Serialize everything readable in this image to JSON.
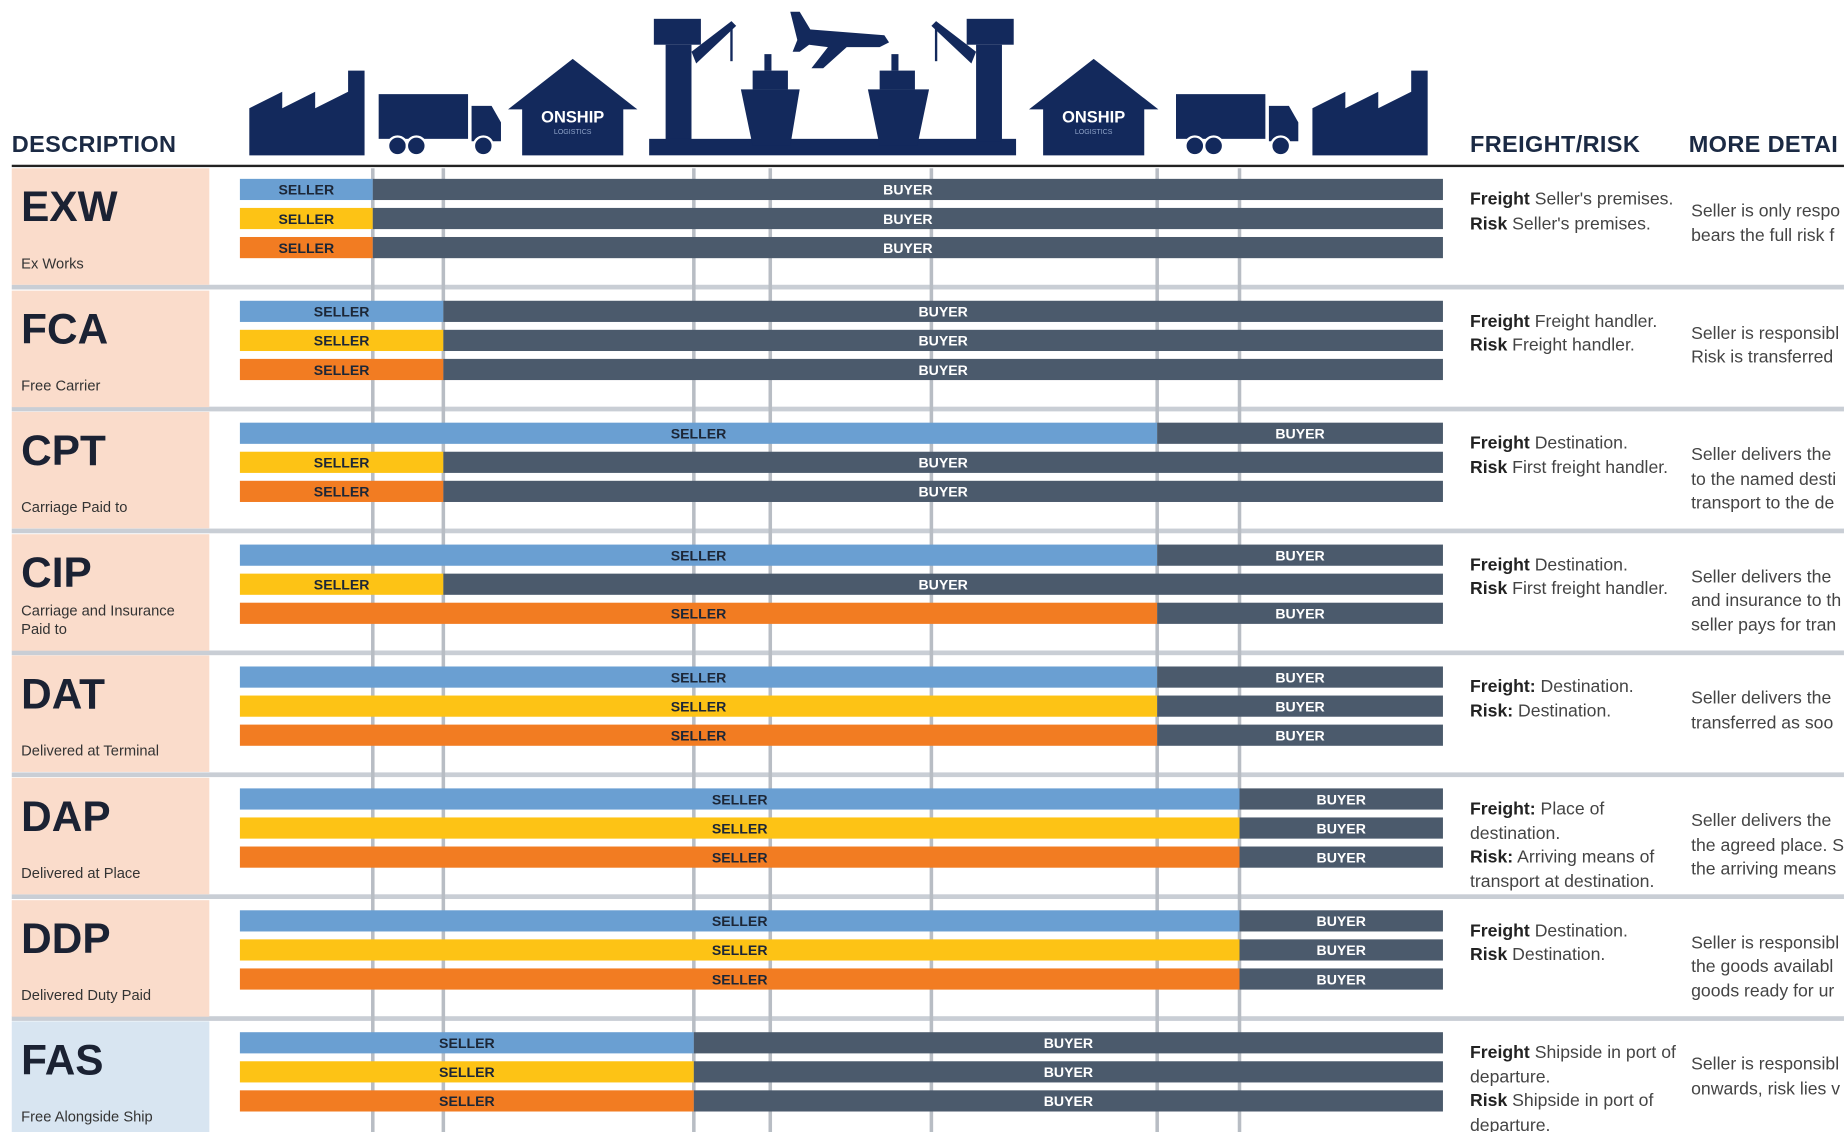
{
  "header": {
    "description": "DESCRIPTION",
    "freight_risk": "FREIGHT/RISK",
    "more_details": "MORE DETAI",
    "logo": "ONSHIP",
    "logo_sub": "LOGISTICS"
  },
  "rows": [
    {
      "code": "EXW",
      "name": "Ex Works",
      "bars": [
        [
          "SELLER",
          "BUYER"
        ],
        [
          "SELLER",
          "BUYER"
        ],
        [
          "SELLER",
          "BUYER"
        ]
      ],
      "freight_label": "Freight",
      "freight": "Seller's premises.",
      "risk_label": "Risk",
      "risk": "Seller's premises.",
      "details": [
        "Seller is only respo",
        "bears the full risk f"
      ]
    },
    {
      "code": "FCA",
      "name": "Free Carrier",
      "bars": [
        [
          "SELLER",
          "BUYER"
        ],
        [
          "SELLER",
          "BUYER"
        ],
        [
          "SELLER",
          "BUYER"
        ]
      ],
      "freight_label": "Freight",
      "freight": "Freight handler.",
      "risk_label": "Risk",
      "risk": "Freight handler.",
      "details": [
        "Seller is responsibl",
        "Risk is transferred"
      ]
    },
    {
      "code": "CPT",
      "name": "Carriage Paid to",
      "bars": [
        [
          "SELLER",
          "BUYER"
        ],
        [
          "SELLER",
          "BUYER"
        ],
        [
          "SELLER",
          "BUYER"
        ]
      ],
      "freight_label": "Freight",
      "freight": "Destination.",
      "risk_label": "Risk",
      "risk": "First freight handler.",
      "details": [
        "Seller delivers the",
        "to the named desti",
        "transport to the de"
      ]
    },
    {
      "code": "CIP",
      "name": "Carriage and Insurance Paid to",
      "bars": [
        [
          "SELLER",
          "BUYER"
        ],
        [
          "SELLER",
          "BUYER"
        ],
        [
          "SELLER",
          "BUYER"
        ]
      ],
      "freight_label": "Freight",
      "freight": "Destination.",
      "risk_label": "Risk",
      "risk": "First freight handler.",
      "details": [
        "Seller delivers the",
        "and insurance to th",
        "seller pays for tran"
      ]
    },
    {
      "code": "DAT",
      "name": "Delivered at Terminal",
      "bars": [
        [
          "SELLER",
          "BUYER"
        ],
        [
          "SELLER",
          "BUYER"
        ],
        [
          "SELLER",
          "BUYER"
        ]
      ],
      "freight_label": "Freight:",
      "freight": "Destination.",
      "risk_label": "Risk:",
      "risk": "Destination.",
      "details": [
        "Seller delivers the",
        "transferred as soo"
      ]
    },
    {
      "code": "DAP",
      "name": "Delivered at Place",
      "bars": [
        [
          "SELLER",
          "BUYER"
        ],
        [
          "SELLER",
          "BUYER"
        ],
        [
          "SELLER",
          "BUYER"
        ]
      ],
      "freight_label": "Freight:",
      "freight": "Place of destination.",
      "risk_label": "Risk:",
      "risk": "Arriving means of transport at destination.",
      "details": [
        "Seller delivers the",
        "the agreed place. S",
        "the arriving means"
      ]
    },
    {
      "code": "DDP",
      "name": "Delivered Duty Paid",
      "bars": [
        [
          "SELLER",
          "BUYER"
        ],
        [
          "SELLER",
          "BUYER"
        ],
        [
          "SELLER",
          "BUYER"
        ]
      ],
      "freight_label": "Freight",
      "freight": "Destination.",
      "risk_label": "Risk",
      "risk": "Destination.",
      "details": [
        "Seller is responsibl",
        "the goods availabl",
        "goods ready for ur"
      ]
    },
    {
      "code": "FAS",
      "name": "Free Alongside Ship",
      "bars": [
        [
          "SELLER",
          "BUYER"
        ],
        [
          "SELLER",
          "BUYER"
        ],
        [
          "SELLER",
          "BUYER"
        ]
      ],
      "freight_label": "Freight",
      "freight": "Shipside in port of departure.",
      "risk_label": "Risk",
      "risk": "Shipside in port of departure.",
      "details": [
        "Seller is responsibl",
        "onwards, risk lies v"
      ]
    }
  ]
}
